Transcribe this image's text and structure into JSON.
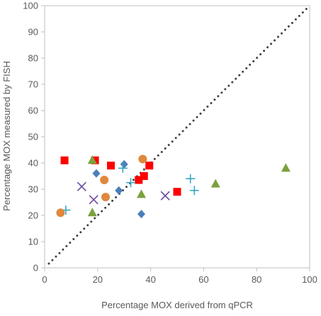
{
  "chart_data": {
    "type": "scatter",
    "title": "",
    "xlabel": "Percentage MOX derived from qPCR",
    "ylabel": "Percentage MOX measured by FISH",
    "xlim": [
      0,
      100
    ],
    "ylim": [
      0,
      100
    ],
    "xticks": [
      0,
      20,
      40,
      60,
      80,
      100
    ],
    "yticks": [
      0,
      10,
      20,
      30,
      40,
      50,
      60,
      70,
      80,
      90,
      100
    ],
    "grid": "none",
    "legend": "none",
    "reference_line": {
      "style": "dotted",
      "color": "#404040",
      "points": [
        [
          0,
          0
        ],
        [
          100,
          100
        ]
      ]
    },
    "series": [
      {
        "marker": "diamond",
        "color": "#4a7ebb",
        "points": [
          [
            19.5,
            36
          ],
          [
            28,
            29.5
          ],
          [
            30,
            39.5
          ],
          [
            36.5,
            20.5
          ]
        ]
      },
      {
        "marker": "square",
        "color": "#ff0000",
        "points": [
          [
            7.5,
            41
          ],
          [
            19,
            41
          ],
          [
            25,
            39
          ],
          [
            35.5,
            33.5
          ],
          [
            37.5,
            35
          ],
          [
            39.5,
            39
          ],
          [
            50,
            29
          ]
        ]
      },
      {
        "marker": "triangle",
        "color": "#7ba03c",
        "points": [
          [
            18,
            41
          ],
          [
            18,
            21
          ],
          [
            36.5,
            28
          ],
          [
            64.5,
            32
          ],
          [
            91,
            38
          ]
        ]
      },
      {
        "marker": "x",
        "color": "#6a4ca0",
        "points": [
          [
            14,
            31
          ],
          [
            18.5,
            26
          ],
          [
            45.5,
            27.5
          ]
        ]
      },
      {
        "marker": "plus",
        "color": "#3aa6c4",
        "points": [
          [
            8,
            22
          ],
          [
            29.5,
            38
          ],
          [
            32.5,
            32.5
          ],
          [
            55,
            34
          ],
          [
            56.5,
            29.5
          ]
        ]
      },
      {
        "marker": "circle",
        "color": "#e0883c",
        "points": [
          [
            6,
            21
          ],
          [
            22.5,
            33.5
          ],
          [
            23,
            27
          ],
          [
            37,
            41.5
          ]
        ]
      }
    ]
  }
}
